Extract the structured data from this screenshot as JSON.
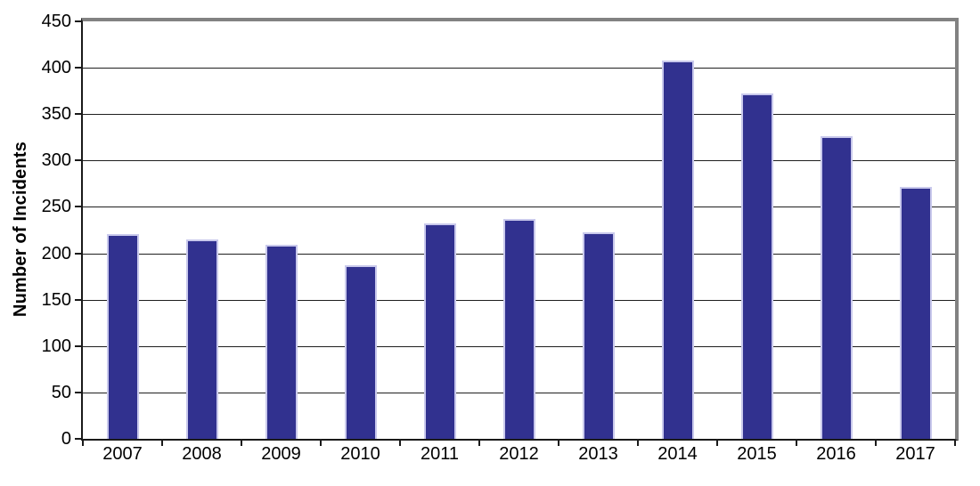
{
  "chart_data": {
    "type": "bar",
    "title": "",
    "xlabel": "",
    "ylabel": "Number of Incidents",
    "categories": [
      "2007",
      "2008",
      "2009",
      "2010",
      "2011",
      "2012",
      "2013",
      "2014",
      "2015",
      "2016",
      "2017"
    ],
    "values": [
      221,
      215,
      209,
      187,
      232,
      237,
      223,
      408,
      372,
      326,
      272
    ],
    "ylim": [
      0,
      450
    ],
    "ytick_step": 50,
    "y_tick_labels": [
      "0",
      "50",
      "100",
      "150",
      "200",
      "250",
      "300",
      "350",
      "400",
      "450"
    ],
    "grid": "horizontal-gridlines-on",
    "legend": "none",
    "bar_color": "#31318F",
    "bar_edge_color": "#C9C9EC",
    "frame_color": "#828282",
    "axis_color": "#1A1A1A"
  }
}
